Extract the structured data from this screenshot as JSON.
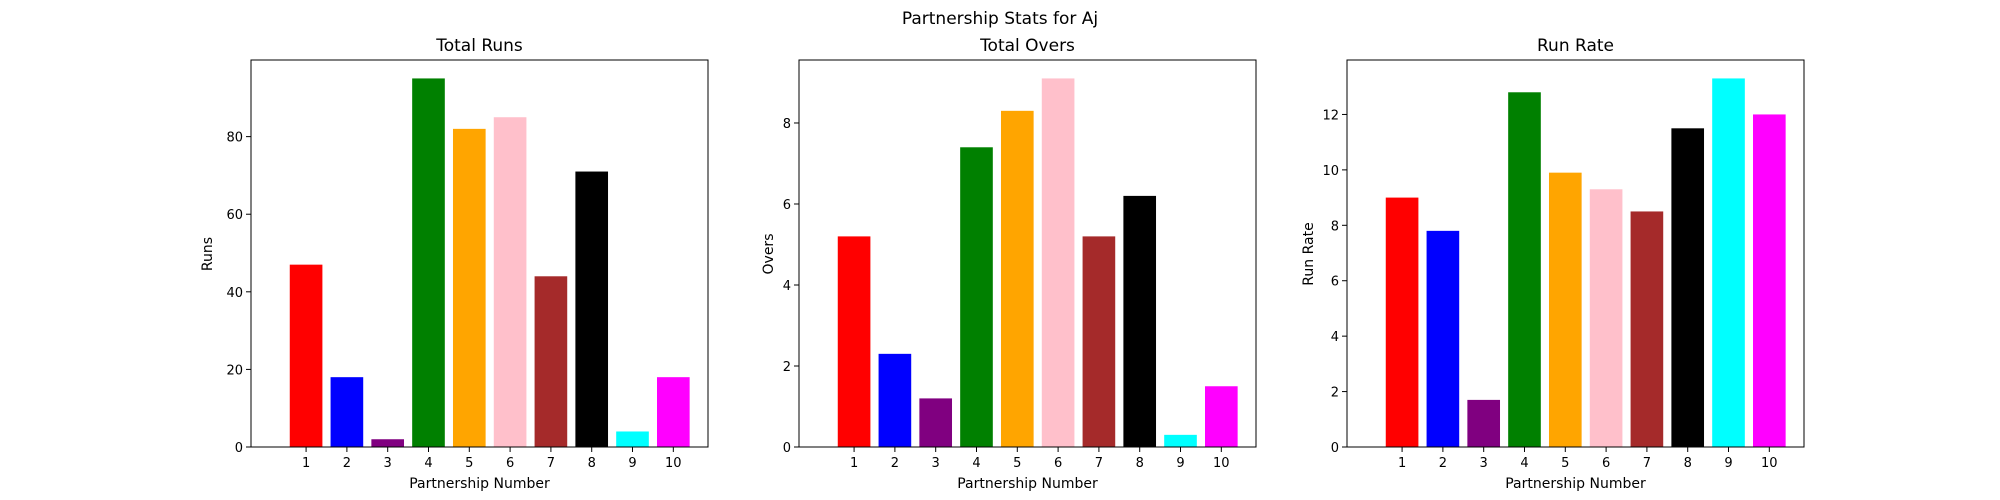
{
  "figure": {
    "suptitle": "Partnership Stats for Aj"
  },
  "chart_data": [
    {
      "type": "bar",
      "title": "Total Runs",
      "xlabel": "Partnership Number",
      "ylabel": "Runs",
      "categories": [
        "1",
        "2",
        "3",
        "4",
        "5",
        "6",
        "7",
        "8",
        "9",
        "10"
      ],
      "values": [
        47,
        18,
        2,
        95,
        82,
        85,
        44,
        71,
        4,
        18
      ],
      "colors": [
        "#ff0000",
        "#0000ff",
        "#800080",
        "#008000",
        "#ffa500",
        "#ffc0cb",
        "#a52a2a",
        "#000000",
        "#00ffff",
        "#ff00ff"
      ],
      "ylim": [
        0,
        99.75
      ],
      "yticks": [
        0,
        20,
        40,
        60,
        80
      ],
      "grid": false
    },
    {
      "type": "bar",
      "title": "Total Overs",
      "xlabel": "Partnership Number",
      "ylabel": "Overs",
      "categories": [
        "1",
        "2",
        "3",
        "4",
        "5",
        "6",
        "7",
        "8",
        "9",
        "10"
      ],
      "values": [
        5.2,
        2.3,
        1.2,
        7.4,
        8.3,
        9.1,
        5.2,
        6.2,
        0.3,
        1.5
      ],
      "colors": [
        "#ff0000",
        "#0000ff",
        "#800080",
        "#008000",
        "#ffa500",
        "#ffc0cb",
        "#a52a2a",
        "#000000",
        "#00ffff",
        "#ff00ff"
      ],
      "ylim": [
        0,
        9.555
      ],
      "yticks": [
        0,
        2,
        4,
        6,
        8
      ],
      "grid": false
    },
    {
      "type": "bar",
      "title": "Run Rate",
      "xlabel": "Partnership Number",
      "ylabel": "Run Rate",
      "categories": [
        "1",
        "2",
        "3",
        "4",
        "5",
        "6",
        "7",
        "8",
        "9",
        "10"
      ],
      "values": [
        9.0,
        7.8,
        1.7,
        12.8,
        9.9,
        9.3,
        8.5,
        11.5,
        13.3,
        12.0
      ],
      "colors": [
        "#ff0000",
        "#0000ff",
        "#800080",
        "#008000",
        "#ffa500",
        "#ffc0cb",
        "#a52a2a",
        "#000000",
        "#00ffff",
        "#ff00ff"
      ],
      "ylim": [
        0,
        13.965
      ],
      "yticks": [
        0,
        2,
        4,
        6,
        8,
        10,
        12
      ],
      "grid": false
    }
  ]
}
